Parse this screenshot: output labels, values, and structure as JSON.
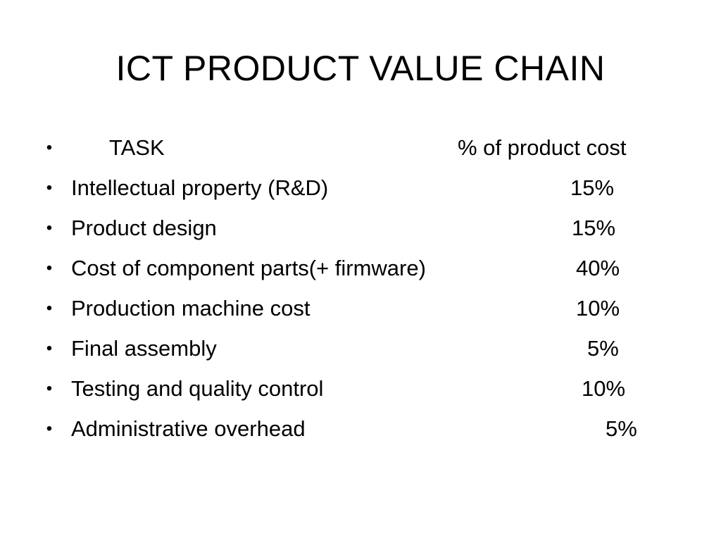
{
  "slide": {
    "title": "ICT PRODUCT VALUE CHAIN",
    "bullet_symbol": "•",
    "header": {
      "task": "TASK",
      "cost": "% of product cost"
    },
    "rows": [
      {
        "task": "Intellectual property (R&D)",
        "cost": "15%"
      },
      {
        "task": "Product design",
        "cost": "15%"
      },
      {
        "task": "Cost of component parts(+ firmware)",
        "cost": "40%"
      },
      {
        "task": "Production machine cost",
        "cost": "10%"
      },
      {
        "task": "Final assembly",
        "cost": "5%"
      },
      {
        "task": "Testing and quality control",
        "cost": "10%"
      },
      {
        "task": "Administrative overhead",
        "cost": "5%"
      }
    ],
    "colors": {
      "background": "#ffffff",
      "text": "#000000"
    }
  }
}
